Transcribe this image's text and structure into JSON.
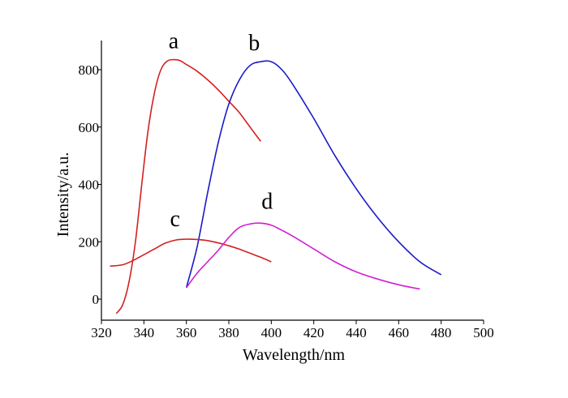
{
  "chart_data": {
    "type": "line",
    "title": "",
    "xlabel": "Wavelength/nm",
    "ylabel": "Intensity/a.u.",
    "xlim": [
      320,
      500
    ],
    "ylim": [
      -80,
      900
    ],
    "x_ticks": [
      320,
      340,
      360,
      380,
      400,
      420,
      440,
      460,
      480,
      500
    ],
    "y_ticks": [
      0,
      200,
      400,
      600,
      800
    ],
    "grid": false,
    "legend": "none",
    "series": [
      {
        "name": "a",
        "color": "#d42020",
        "x": [
          327,
          330,
          333,
          336,
          339,
          342,
          345,
          348,
          351,
          354,
          357,
          360,
          365,
          370,
          375,
          380,
          385,
          390,
          395
        ],
        "y": [
          -50,
          -20,
          60,
          200,
          400,
          590,
          720,
          800,
          830,
          835,
          832,
          818,
          795,
          765,
          730,
          690,
          650,
          600,
          550
        ]
      },
      {
        "name": "b",
        "color": "#1a1ac8",
        "x": [
          360,
          365,
          370,
          375,
          380,
          385,
          390,
          395,
          400,
          405,
          410,
          420,
          430,
          440,
          450,
          460,
          470,
          480
        ],
        "y": [
          40,
          180,
          370,
          545,
          680,
          765,
          815,
          828,
          828,
          800,
          750,
          630,
          500,
          385,
          285,
          200,
          130,
          85
        ]
      },
      {
        "name": "c",
        "color": "#d42020",
        "x": [
          324,
          330,
          335,
          340,
          345,
          350,
          355,
          360,
          365,
          370,
          375,
          380,
          385,
          390,
          395,
          400
        ],
        "y": [
          115,
          120,
          135,
          155,
          175,
          195,
          206,
          209,
          208,
          204,
          196,
          186,
          174,
          160,
          146,
          130
        ]
      },
      {
        "name": "d",
        "color": "#d020d0",
        "x": [
          360,
          365,
          370,
          375,
          380,
          385,
          390,
          395,
          400,
          405,
          410,
          420,
          430,
          440,
          450,
          460,
          470
        ],
        "y": [
          40,
          90,
          130,
          170,
          215,
          250,
          262,
          265,
          258,
          240,
          220,
          175,
          130,
          95,
          70,
          50,
          35
        ]
      }
    ]
  }
}
